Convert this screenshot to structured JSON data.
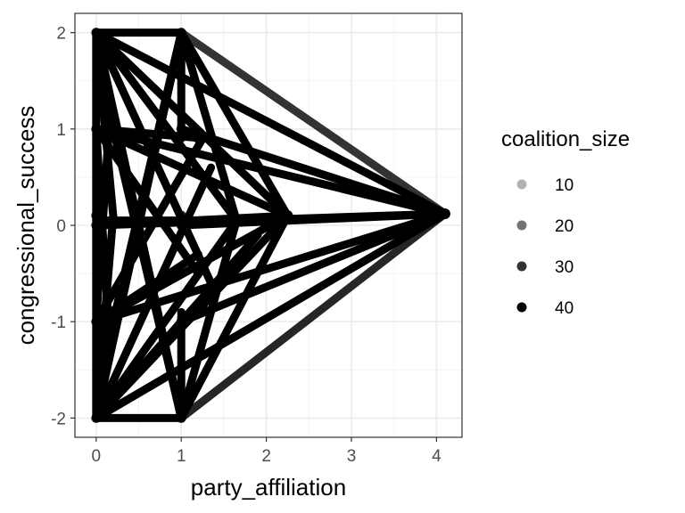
{
  "chart_data": {
    "type": "line",
    "title": "",
    "xlabel": "party_affiliation",
    "ylabel": "congressional_success",
    "xlim": [
      -0.25,
      4.3
    ],
    "ylim": [
      -2.2,
      2.2
    ],
    "x_ticks": [
      0,
      1,
      2,
      3,
      4
    ],
    "y_ticks": [
      2,
      1,
      0,
      -1,
      -2
    ],
    "x_tick_labels": [
      "0",
      "1",
      "2",
      "3",
      "4"
    ],
    "y_tick_labels": [
      "2",
      "1",
      "0",
      "-1",
      "-2"
    ],
    "grid": true,
    "legend_position": "right",
    "legend": {
      "title": "coalition_size",
      "entries": [
        {
          "label": "10",
          "opacity": 0.3
        },
        {
          "label": "20",
          "opacity": 0.55
        },
        {
          "label": "30",
          "opacity": 0.8
        },
        {
          "label": "40",
          "opacity": 1.0
        }
      ]
    },
    "hub_points": [
      {
        "x": 4.1,
        "y": 0.12
      },
      {
        "x": 2.25,
        "y": 0.1
      },
      {
        "x": 1.65,
        "y": 0.05
      }
    ],
    "node_points": [
      {
        "x": 0,
        "y": 2
      },
      {
        "x": 1,
        "y": 2
      },
      {
        "x": 0,
        "y": 1
      },
      {
        "x": 1,
        "y": 1
      },
      {
        "x": 1.2,
        "y": 0.9
      },
      {
        "x": 0,
        "y": 0
      },
      {
        "x": 0,
        "y": 0.1
      },
      {
        "x": 1,
        "y": 0.1
      },
      {
        "x": 1,
        "y": 0
      },
      {
        "x": 0,
        "y": -1
      },
      {
        "x": 1,
        "y": -1
      },
      {
        "x": 0,
        "y": -2
      },
      {
        "x": 1,
        "y": -2
      }
    ],
    "segments": [
      {
        "x1": 0,
        "y1": 2,
        "x2": 4.1,
        "y2": 0.12,
        "opacity": 1.0
      },
      {
        "x1": 0,
        "y1": 1,
        "x2": 4.1,
        "y2": 0.12,
        "opacity": 1.0
      },
      {
        "x1": 0,
        "y1": 0,
        "x2": 4.1,
        "y2": 0.12,
        "opacity": 1.0
      },
      {
        "x1": 0,
        "y1": -1,
        "x2": 4.1,
        "y2": 0.12,
        "opacity": 1.0
      },
      {
        "x1": 0,
        "y1": -2,
        "x2": 4.1,
        "y2": 0.12,
        "opacity": 1.0
      },
      {
        "x1": 1,
        "y1": 2,
        "x2": 4.1,
        "y2": 0.12,
        "opacity": 0.8
      },
      {
        "x1": 1,
        "y1": 1,
        "x2": 4.1,
        "y2": 0.12,
        "opacity": 1.0
      },
      {
        "x1": 1,
        "y1": 0,
        "x2": 4.1,
        "y2": 0.12,
        "opacity": 1.0
      },
      {
        "x1": 1,
        "y1": -1,
        "x2": 4.1,
        "y2": 0.12,
        "opacity": 1.0
      },
      {
        "x1": 1,
        "y1": -2,
        "x2": 4.1,
        "y2": 0.12,
        "opacity": 0.85
      },
      {
        "x1": 0,
        "y1": 2,
        "x2": 2.25,
        "y2": 0.1,
        "opacity": 1.0
      },
      {
        "x1": 0,
        "y1": 1,
        "x2": 2.25,
        "y2": 0.1,
        "opacity": 1.0
      },
      {
        "x1": 0,
        "y1": 0,
        "x2": 2.25,
        "y2": 0.1,
        "opacity": 1.0
      },
      {
        "x1": 0,
        "y1": -1,
        "x2": 2.25,
        "y2": 0.1,
        "opacity": 1.0
      },
      {
        "x1": 0,
        "y1": -2,
        "x2": 2.25,
        "y2": 0.1,
        "opacity": 1.0
      },
      {
        "x1": 1,
        "y1": 2,
        "x2": 2.25,
        "y2": 0.1,
        "opacity": 1.0
      },
      {
        "x1": 1,
        "y1": -2,
        "x2": 2.25,
        "y2": 0.1,
        "opacity": 1.0
      },
      {
        "x1": 0,
        "y1": 2,
        "x2": 1.65,
        "y2": 0.05,
        "opacity": 1.0
      },
      {
        "x1": 0,
        "y1": -2,
        "x2": 1.65,
        "y2": 0.05,
        "opacity": 1.0
      },
      {
        "x1": 1,
        "y1": 2,
        "x2": 1.65,
        "y2": 0.05,
        "opacity": 1.0
      },
      {
        "x1": 1,
        "y1": -2,
        "x2": 1.65,
        "y2": 0.05,
        "opacity": 1.0
      },
      {
        "x1": 0,
        "y1": 2,
        "x2": 1,
        "y2": 2,
        "opacity": 1.0
      },
      {
        "x1": 0,
        "y1": -2,
        "x2": 1,
        "y2": -2,
        "opacity": 1.0
      },
      {
        "x1": 0,
        "y1": 2,
        "x2": 0,
        "y2": -2,
        "opacity": 1.0
      },
      {
        "x1": 0,
        "y1": 2,
        "x2": 1,
        "y2": -2,
        "opacity": 1.0
      },
      {
        "x1": 0,
        "y1": -2,
        "x2": 1,
        "y2": 2,
        "opacity": 1.0
      },
      {
        "x1": 0,
        "y1": 2,
        "x2": 0.2,
        "y2": 0.1,
        "opacity": 1.0
      },
      {
        "x1": 0,
        "y1": -2,
        "x2": 0.2,
        "y2": 0.1,
        "opacity": 1.0
      },
      {
        "x1": 0,
        "y1": 1,
        "x2": 1.3,
        "y2": 0.9,
        "opacity": 1.0
      },
      {
        "x1": 0,
        "y1": 1,
        "x2": 0.15,
        "y2": -1.1,
        "opacity": 1.0
      },
      {
        "x1": 0,
        "y1": -1,
        "x2": 1.2,
        "y2": -0.3,
        "opacity": 1.0
      },
      {
        "x1": 0,
        "y1": -1,
        "x2": 0.15,
        "y2": 1.0,
        "opacity": 1.0
      },
      {
        "x1": 0,
        "y1": -1,
        "x2": 1.25,
        "y2": 0.9,
        "opacity": 1.0
      },
      {
        "x1": 0,
        "y1": 1,
        "x2": 1.2,
        "y2": -0.5,
        "opacity": 1.0
      },
      {
        "x1": 0,
        "y1": 2,
        "x2": 0.15,
        "y2": 1.0,
        "opacity": 1.0
      },
      {
        "x1": 0,
        "y1": -2,
        "x2": 0.15,
        "y2": -1.0,
        "opacity": 1.0
      },
      {
        "x1": 1,
        "y1": 2,
        "x2": 0.2,
        "y2": -1.0,
        "opacity": 1.0
      },
      {
        "x1": 1,
        "y1": -2,
        "x2": 0.2,
        "y2": 1.0,
        "opacity": 1.0
      },
      {
        "x1": 1,
        "y1": 2,
        "x2": 1.0,
        "y2": 0.9,
        "opacity": 1.0
      },
      {
        "x1": 1,
        "y1": -2,
        "x2": 1.0,
        "y2": -0.9,
        "opacity": 1.0
      },
      {
        "x1": 0,
        "y1": 0.05,
        "x2": 1.0,
        "y2": 0.05,
        "opacity": 1.0
      },
      {
        "x1": 0,
        "y1": 2,
        "x2": 1.35,
        "y2": -0.6,
        "opacity": 1.0
      },
      {
        "x1": 0,
        "y1": -2,
        "x2": 1.35,
        "y2": 0.6,
        "opacity": 1.0
      },
      {
        "x1": 0,
        "y1": -2,
        "x2": 1.9,
        "y2": -0.1,
        "opacity": 1.0
      }
    ]
  }
}
